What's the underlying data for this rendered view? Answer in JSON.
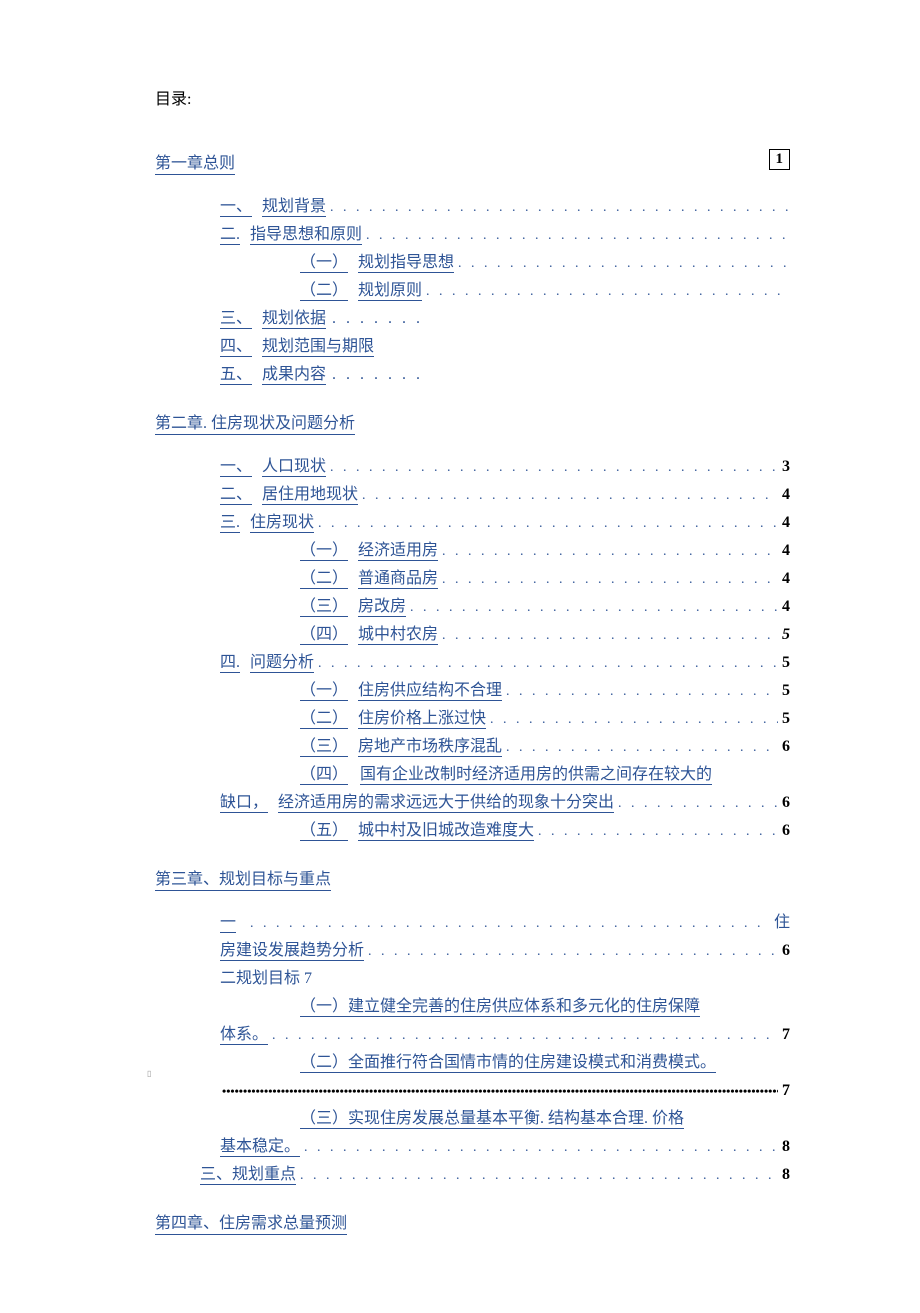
{
  "document_title": "目录:",
  "dot_leader": ". . . . . . . . . . . . . . . . . . . . . . . . . . . . . . . . . . . . . . . . . . . . . . . . . . . . . . . . . . . . . . . . . . . . . . . . . . . . . . . . . . . . . . . . . . . . . . . . . . . . .",
  "dense_leader": "••••••••••••••••••••••••••••••••••••••••••••••••••••••••••••••••••••••••••••••••••••••••••••••••••••••••••••••••••••••••••••••••••••••••••••••••••••",
  "colors": {
    "link_blue": "#2e5496",
    "text_black": "#000000",
    "page_background": "#ffffff"
  },
  "chapter1": {
    "heading": "第一章总则",
    "page_box": "1",
    "items": [
      {
        "prefix": "一、",
        "label": "规划背景",
        "page": null,
        "leader": true,
        "indent": 1
      },
      {
        "prefix": "二.",
        "label": "指导思想和原则",
        "page": null,
        "leader": true,
        "indent": 1
      },
      {
        "prefix": "（一）",
        "label": "规划指导思想",
        "page": null,
        "leader": true,
        "indent": 2
      },
      {
        "prefix": "（二）",
        "label": "规划原则",
        "page": null,
        "leader": true,
        "indent": 2
      },
      {
        "prefix": "三、",
        "label": "规划依据",
        "page": null,
        "leader": "short",
        "indent": 1
      },
      {
        "prefix": "四、",
        "label": "规划范围与期限",
        "page": null,
        "leader": false,
        "indent": 1
      },
      {
        "prefix": "五、",
        "label": "成果内容",
        "page": null,
        "leader": "short",
        "indent": 1
      }
    ]
  },
  "chapter2": {
    "heading": "第二章. 住房现状及问题分析",
    "items": [
      {
        "prefix": "一、",
        "label": "人口现状",
        "page": "3",
        "indent": 1
      },
      {
        "prefix": "二、",
        "label": "居住用地现状",
        "page": "4",
        "indent": 1
      },
      {
        "prefix": "三.",
        "label": "住房现状",
        "page": "4",
        "indent": 1
      },
      {
        "prefix": "（一）",
        "label": "经济适用房",
        "page": "4",
        "indent": 2
      },
      {
        "prefix": "（二）",
        "label": "普通商品房",
        "page": "4",
        "indent": 2
      },
      {
        "prefix": "（三）",
        "label": "房改房",
        "page": "4",
        "indent": 2
      },
      {
        "prefix": "（四）",
        "label": "城中村农房",
        "page": "5",
        "page_style": "italic",
        "indent": 2
      },
      {
        "prefix": "四.",
        "label": "问题分析",
        "page": "5",
        "indent": 1
      },
      {
        "prefix": "（一）",
        "label": "住房供应结构不合理",
        "page": "5",
        "indent": 2
      },
      {
        "prefix": "（二）",
        "label": "住房价格上涨过快",
        "page": "5",
        "indent": 2
      },
      {
        "prefix": "（三）",
        "label": "房地产市场秩序混乱",
        "page": "6",
        "indent": 2
      }
    ],
    "wrapped_item": {
      "line1_prefix": "（四）",
      "line1_label": "国有企业改制时经济适用房的供需之间存在较大的",
      "line2_prefix": "缺口，",
      "line2_label": "经济适用房的需求远远大于供给的现象十分突出",
      "page": "6"
    },
    "after_wrap": [
      {
        "prefix": "（五）",
        "label": "城中村及旧城改造难度大",
        "page": "6",
        "indent": 2
      }
    ]
  },
  "chapter3": {
    "heading": "第三章、规划目标与重点",
    "line1_prefix": "一",
    "line1_right": "住",
    "line2_label": "房建设发展趋势分析",
    "line2_page": "6",
    "line3_text": "二规划目标 7",
    "sub_items": [
      {
        "prefix": "（一）",
        "label": "建立健全完善的住房供应体系和多元化的住房保障",
        "cont_label": "体系。",
        "page": "7"
      },
      {
        "prefix": "（二）",
        "label": "全面推行符合国情市情的住房建设模式和消费模式。",
        "cont_label": "",
        "page": "7",
        "dense": true
      },
      {
        "prefix": "（三）",
        "label": "实现住房发展总量基本平衡. 结构基本合理. 价格",
        "cont_label": "基本稳定。",
        "page": "8"
      }
    ],
    "bottom_item": {
      "label": "三、规划重点",
      "page": "8"
    }
  },
  "chapter4": {
    "heading": "第四章、住房需求总量预测"
  }
}
